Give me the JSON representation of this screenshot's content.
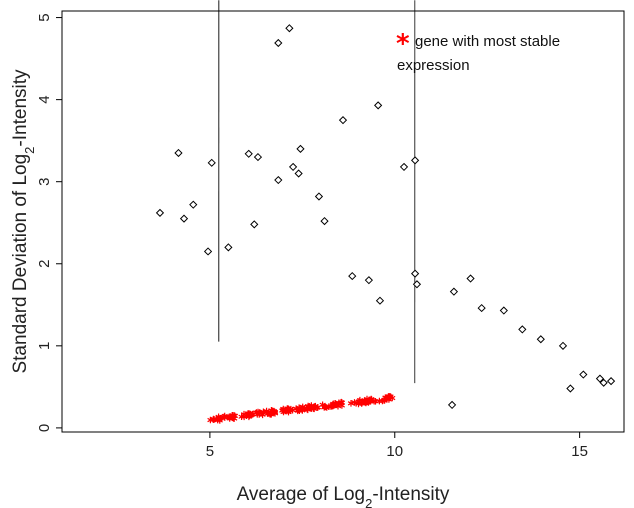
{
  "chart_data": {
    "type": "scatter",
    "xlabel": "Average of Log2-Intensity",
    "ylabel": "Standard Deviation of Log2-Intensity",
    "xlim": [
      1.0,
      16.2
    ],
    "ylim": [
      -0.05,
      5.08
    ],
    "x_ticks": [
      5,
      10,
      15
    ],
    "y_ticks": [
      0,
      1,
      2,
      3,
      4,
      5
    ],
    "grid": false,
    "legend": {
      "placement": "top-right",
      "symbol": "*",
      "symbol_color": "#ff0000",
      "line1": "gene with most stable",
      "line2": "expression"
    },
    "series": [
      {
        "marker": "diamond-open",
        "color": "#000000",
        "values": [
          [
            7.15,
            4.87
          ],
          [
            6.85,
            4.69
          ],
          [
            9.55,
            3.93
          ],
          [
            8.6,
            3.75
          ],
          [
            4.15,
            3.35
          ],
          [
            7.45,
            3.4
          ],
          [
            6.05,
            3.34
          ],
          [
            6.3,
            3.3
          ],
          [
            10.55,
            3.26
          ],
          [
            10.25,
            3.18
          ],
          [
            5.05,
            3.23
          ],
          [
            7.25,
            3.18
          ],
          [
            7.4,
            3.1
          ],
          [
            6.85,
            3.02
          ],
          [
            7.95,
            2.82
          ],
          [
            4.55,
            2.72
          ],
          [
            3.65,
            2.62
          ],
          [
            4.3,
            2.55
          ],
          [
            6.2,
            2.48
          ],
          [
            8.1,
            2.52
          ],
          [
            9.3,
            1.8
          ],
          [
            10.55,
            1.88
          ],
          [
            10.6,
            1.75
          ],
          [
            12.05,
            1.82
          ],
          [
            11.6,
            1.66
          ],
          [
            12.35,
            1.46
          ],
          [
            12.95,
            1.43
          ],
          [
            13.45,
            1.2
          ],
          [
            13.95,
            1.08
          ],
          [
            14.55,
            1.0
          ],
          [
            15.1,
            0.65
          ],
          [
            15.55,
            0.6
          ],
          [
            15.85,
            0.57
          ],
          [
            15.65,
            0.55
          ],
          [
            14.75,
            0.48
          ],
          [
            11.55,
            0.28
          ],
          [
            9.6,
            1.55
          ],
          [
            8.85,
            1.85
          ],
          [
            5.5,
            2.2
          ],
          [
            4.95,
            2.15
          ]
        ]
      },
      {
        "name": "gene with most stable expression",
        "marker": "star",
        "color": "#ff0000",
        "x_range": [
          5.0,
          10.0
        ],
        "y_range": [
          0.1,
          0.37
        ]
      }
    ]
  }
}
